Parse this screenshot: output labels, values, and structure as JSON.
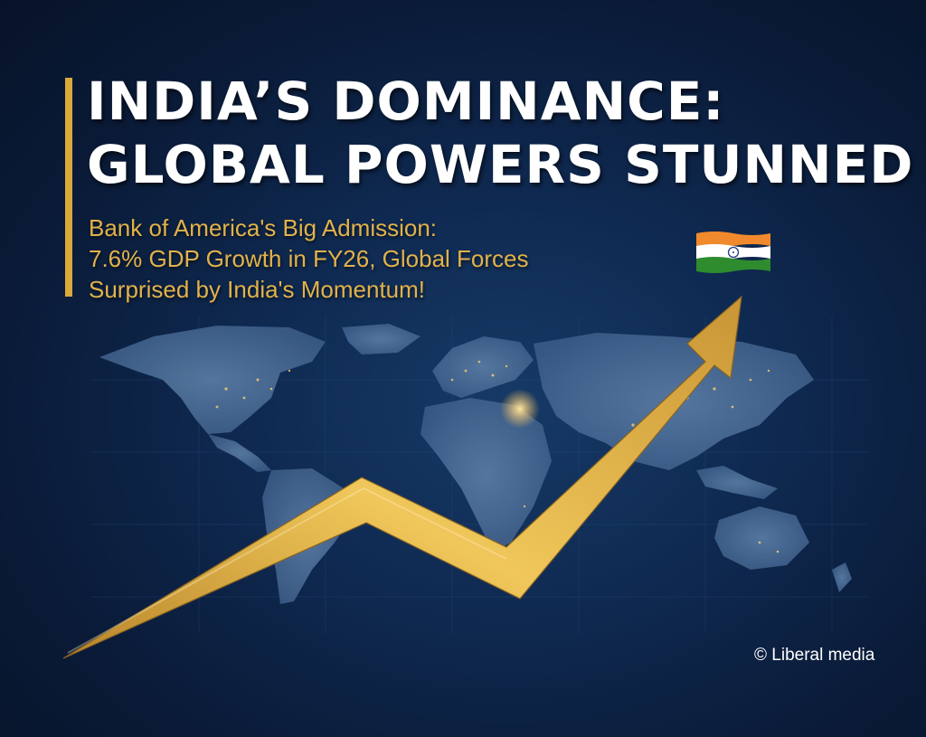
{
  "headline": {
    "line1": "INDIA’S DOMINANCE:",
    "line2": "GLOBAL POWERS STUNNED"
  },
  "subtitle": {
    "line1": "Bank of America's Big Admission:",
    "line2": "7.6% GDP Growth in FY26, Global Forces",
    "line3": "Surprised by India's Momentum!"
  },
  "copyright": "© Liberal media",
  "colors": {
    "background": "#0b1e3d",
    "headline": "#ffffff",
    "accent_gold": "#d9a93c",
    "subtitle": "#e2b24a",
    "flag_saffron": "#f08a2c",
    "flag_white": "#ffffff",
    "flag_green": "#2e8b2e",
    "flag_chakra": "#1f3c8a"
  },
  "icons": {
    "flag": "india-flag-icon",
    "arrow": "growth-arrow-icon",
    "map": "world-map-icon"
  }
}
